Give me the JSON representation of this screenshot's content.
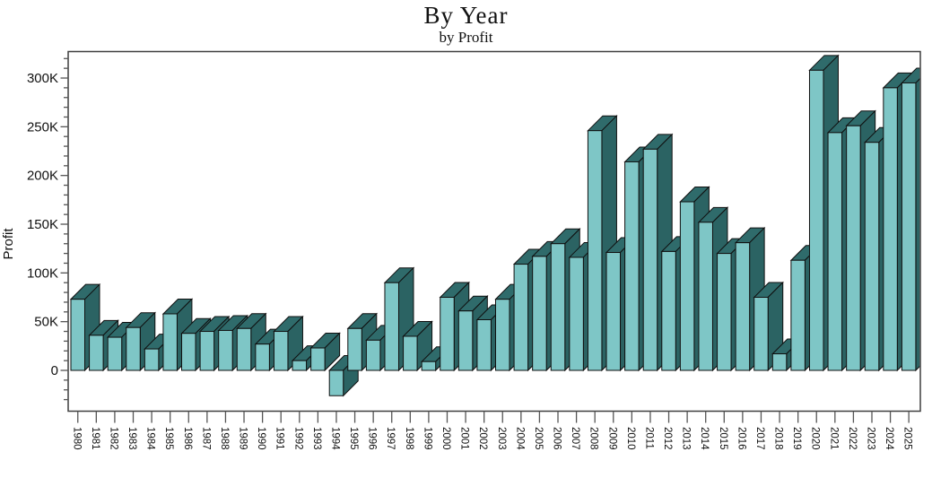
{
  "title": "By Year",
  "subtitle": "by Profit",
  "chart_data": {
    "type": "bar",
    "title": "By Year",
    "subtitle": "by Profit",
    "xlabel": "",
    "ylabel": "Profit",
    "value_unit": "K",
    "style": "3d-bars",
    "grid": false,
    "legend": false,
    "categories": [
      "1980",
      "1981",
      "1982",
      "1983",
      "1984",
      "1985",
      "1986",
      "1987",
      "1988",
      "1989",
      "1990",
      "1991",
      "1992",
      "1993",
      "1994",
      "1995",
      "1996",
      "1997",
      "1998",
      "1999",
      "2000",
      "2001",
      "2002",
      "2003",
      "2004",
      "2005",
      "2006",
      "2007",
      "2008",
      "2009",
      "2010",
      "2011",
      "2012",
      "2013",
      "2014",
      "2015",
      "2016",
      "2017",
      "2018",
      "2019",
      "2020",
      "2021",
      "2022",
      "2023",
      "2024",
      "2025"
    ],
    "values_thousands": [
      73,
      36,
      34,
      44,
      22,
      58,
      38,
      40,
      41,
      43,
      27,
      40,
      10,
      23,
      -26,
      43,
      31,
      90,
      35,
      9,
      75,
      61,
      52,
      73,
      109,
      117,
      130,
      116,
      246,
      121,
      214,
      227,
      122,
      173,
      152,
      120,
      131,
      75,
      17,
      113,
      308,
      244,
      251,
      234,
      290,
      295
    ],
    "y_major_values": [
      0,
      50,
      100,
      150,
      200,
      250,
      300
    ],
    "y_major_labels": [
      "0",
      "50K",
      "100K",
      "150K",
      "200K",
      "250K",
      "300K"
    ],
    "y_minor_step": 10,
    "ylim_thousands": [
      -42,
      328
    ],
    "colors": {
      "bar_front": "#7EC6C6",
      "bar_top": "#2F6B6B",
      "bar_side": "#2B6363",
      "bar_outline": "#101010",
      "frame": "#3f3f3f",
      "tick": "#555555",
      "text": "#111111"
    }
  }
}
